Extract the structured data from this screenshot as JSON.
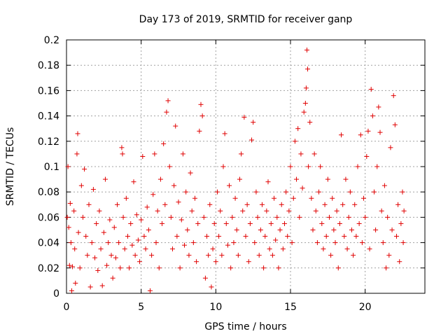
{
  "chart_data": {
    "type": "scatter",
    "title": "Day 173 of 2019, SRMTID for receiver ganp",
    "xlabel": "GPS time / hours",
    "ylabel": "SRMTID / TECUs",
    "xlim": [
      0,
      24
    ],
    "ylim": [
      0,
      0.2
    ],
    "grid": true,
    "marker": "+",
    "color": "#e00000",
    "x_ticks": [
      0,
      5,
      10,
      15,
      20
    ],
    "x_tick_labels": [
      "0",
      "5",
      "10",
      "15",
      "20"
    ],
    "y_ticks": [
      0,
      0.02,
      0.04,
      0.06,
      0.08,
      0.1,
      0.12,
      0.14,
      0.16,
      0.18,
      0.2
    ],
    "y_tick_labels": [
      "0",
      "0.02",
      "0.04",
      "0.06",
      "0.08",
      "0.1",
      "0.12",
      "0.14",
      "0.16",
      "0.18",
      "0.2"
    ],
    "series": [
      {
        "name": "SRMTID",
        "points": [
          [
            0.05,
            0.06
          ],
          [
            0.1,
            0.1
          ],
          [
            0.15,
            0.052
          ],
          [
            0.2,
            0.022
          ],
          [
            0.25,
            0.071
          ],
          [
            0.3,
            0.04
          ],
          [
            0.35,
            0.002
          ],
          [
            0.4,
            0.021
          ],
          [
            0.5,
            0.065
          ],
          [
            0.55,
            0.035
          ],
          [
            0.6,
            0.008
          ],
          [
            0.7,
            0.11
          ],
          [
            0.75,
            0.126
          ],
          [
            0.8,
            0.048
          ],
          [
            0.9,
            0.02
          ],
          [
            1.0,
            0.085
          ],
          [
            1.1,
            0.06
          ],
          [
            1.2,
            0.098
          ],
          [
            1.3,
            0.045
          ],
          [
            1.4,
            0.03
          ],
          [
            1.5,
            0.07
          ],
          [
            1.6,
            0.005
          ],
          [
            1.7,
            0.04
          ],
          [
            1.8,
            0.082
          ],
          [
            1.9,
            0.028
          ],
          [
            2.0,
            0.055
          ],
          [
            2.1,
            0.018
          ],
          [
            2.2,
            0.065
          ],
          [
            2.3,
            0.035
          ],
          [
            2.4,
            0.006
          ],
          [
            2.5,
            0.048
          ],
          [
            2.6,
            0.09
          ],
          [
            2.7,
            0.022
          ],
          [
            2.8,
            0.04
          ],
          [
            2.9,
            0.058
          ],
          [
            3.0,
            0.03
          ],
          [
            3.1,
            0.012
          ],
          [
            3.2,
            0.052
          ],
          [
            3.3,
            0.028
          ],
          [
            3.4,
            0.07
          ],
          [
            3.5,
            0.04
          ],
          [
            3.6,
            0.02
          ],
          [
            3.7,
            0.115
          ],
          [
            3.75,
            0.11
          ],
          [
            3.8,
            0.06
          ],
          [
            3.9,
            0.035
          ],
          [
            4.0,
            0.075
          ],
          [
            4.1,
            0.045
          ],
          [
            4.2,
            0.02
          ],
          [
            4.3,
            0.055
          ],
          [
            4.4,
            0.038
          ],
          [
            4.5,
            0.088
          ],
          [
            4.6,
            0.03
          ],
          [
            4.7,
            0.062
          ],
          [
            4.8,
            0.042
          ],
          [
            4.9,
            0.025
          ],
          [
            5.0,
            0.058
          ],
          [
            5.1,
            0.108
          ],
          [
            5.2,
            0.045
          ],
          [
            5.3,
            0.035
          ],
          [
            5.4,
            0.068
          ],
          [
            5.5,
            0.05
          ],
          [
            5.6,
            0.002
          ],
          [
            5.7,
            0.03
          ],
          [
            5.8,
            0.078
          ],
          [
            5.9,
            0.11
          ],
          [
            6.0,
            0.04
          ],
          [
            6.1,
            0.065
          ],
          [
            6.2,
            0.02
          ],
          [
            6.3,
            0.09
          ],
          [
            6.4,
            0.055
          ],
          [
            6.5,
            0.118
          ],
          [
            6.6,
            0.07
          ],
          [
            6.7,
            0.143
          ],
          [
            6.8,
            0.152
          ],
          [
            6.9,
            0.1
          ],
          [
            7.0,
            0.06
          ],
          [
            7.1,
            0.035
          ],
          [
            7.2,
            0.085
          ],
          [
            7.3,
            0.132
          ],
          [
            7.4,
            0.045
          ],
          [
            7.5,
            0.072
          ],
          [
            7.6,
            0.02
          ],
          [
            7.7,
            0.058
          ],
          [
            7.8,
            0.11
          ],
          [
            7.9,
            0.038
          ],
          [
            8.0,
            0.08
          ],
          [
            8.1,
            0.05
          ],
          [
            8.2,
            0.03
          ],
          [
            8.3,
            0.095
          ],
          [
            8.4,
            0.065
          ],
          [
            8.5,
            0.04
          ],
          [
            8.6,
            0.075
          ],
          [
            8.7,
            0.025
          ],
          [
            8.8,
            0.055
          ],
          [
            8.9,
            0.128
          ],
          [
            9.0,
            0.149
          ],
          [
            9.1,
            0.14
          ],
          [
            9.2,
            0.06
          ],
          [
            9.3,
            0.012
          ],
          [
            9.4,
            0.045
          ],
          [
            9.5,
            0.03
          ],
          [
            9.6,
            0.07
          ],
          [
            9.7,
            0.005
          ],
          [
            9.8,
            0.035
          ],
          [
            9.9,
            0.055
          ],
          [
            10.0,
            0.025
          ],
          [
            10.1,
            0.08
          ],
          [
            10.2,
            0.045
          ],
          [
            10.3,
            0.065
          ],
          [
            10.4,
            0.03
          ],
          [
            10.5,
            0.1
          ],
          [
            10.6,
            0.126
          ],
          [
            10.7,
            0.055
          ],
          [
            10.8,
            0.038
          ],
          [
            10.9,
            0.085
          ],
          [
            11.0,
            0.02
          ],
          [
            11.1,
            0.06
          ],
          [
            11.2,
            0.04
          ],
          [
            11.3,
            0.075
          ],
          [
            11.4,
            0.05
          ],
          [
            11.5,
            0.03
          ],
          [
            11.6,
            0.09
          ],
          [
            11.7,
            0.11
          ],
          [
            11.8,
            0.065
          ],
          [
            11.9,
            0.139
          ],
          [
            12.0,
            0.045
          ],
          [
            12.1,
            0.07
          ],
          [
            12.2,
            0.025
          ],
          [
            12.3,
            0.055
          ],
          [
            12.4,
            0.121
          ],
          [
            12.5,
            0.135
          ],
          [
            12.6,
            0.04
          ],
          [
            12.7,
            0.08
          ],
          [
            12.8,
            0.06
          ],
          [
            12.9,
            0.03
          ],
          [
            13.0,
            0.05
          ],
          [
            13.1,
            0.07
          ],
          [
            13.2,
            0.02
          ],
          [
            13.3,
            0.045
          ],
          [
            13.4,
            0.065
          ],
          [
            13.5,
            0.088
          ],
          [
            13.6,
            0.035
          ],
          [
            13.7,
            0.055
          ],
          [
            13.8,
            0.03
          ],
          [
            13.9,
            0.075
          ],
          [
            14.0,
            0.042
          ],
          [
            14.1,
            0.06
          ],
          [
            14.2,
            0.02
          ],
          [
            14.3,
            0.05
          ],
          [
            14.4,
            0.07
          ],
          [
            14.5,
            0.035
          ],
          [
            14.6,
            0.055
          ],
          [
            14.7,
            0.08
          ],
          [
            14.8,
            0.045
          ],
          [
            14.9,
            0.065
          ],
          [
            15.0,
            0.1
          ],
          [
            15.1,
            0.04
          ],
          [
            15.2,
            0.075
          ],
          [
            15.3,
            0.12
          ],
          [
            15.4,
            0.09
          ],
          [
            15.5,
            0.13
          ],
          [
            15.6,
            0.06
          ],
          [
            15.7,
            0.11
          ],
          [
            15.8,
            0.083
          ],
          [
            15.9,
            0.143
          ],
          [
            16.0,
            0.15
          ],
          [
            16.05,
            0.162
          ],
          [
            16.1,
            0.192
          ],
          [
            16.15,
            0.177
          ],
          [
            16.2,
            0.1
          ],
          [
            16.3,
            0.135
          ],
          [
            16.4,
            0.075
          ],
          [
            16.5,
            0.05
          ],
          [
            16.6,
            0.11
          ],
          [
            16.7,
            0.065
          ],
          [
            16.8,
            0.04
          ],
          [
            16.9,
            0.08
          ],
          [
            17.0,
            0.1
          ],
          [
            17.1,
            0.055
          ],
          [
            17.2,
            0.035
          ],
          [
            17.3,
            0.07
          ],
          [
            17.4,
            0.045
          ],
          [
            17.5,
            0.09
          ],
          [
            17.6,
            0.06
          ],
          [
            17.7,
            0.03
          ],
          [
            17.8,
            0.075
          ],
          [
            17.9,
            0.05
          ],
          [
            18.0,
            0.04
          ],
          [
            18.1,
            0.065
          ],
          [
            18.2,
            0.02
          ],
          [
            18.3,
            0.055
          ],
          [
            18.4,
            0.125
          ],
          [
            18.5,
            0.07
          ],
          [
            18.6,
            0.045
          ],
          [
            18.7,
            0.09
          ],
          [
            18.8,
            0.035
          ],
          [
            18.9,
            0.06
          ],
          [
            19.0,
            0.08
          ],
          [
            19.1,
            0.05
          ],
          [
            19.2,
            0.03
          ],
          [
            19.3,
            0.07
          ],
          [
            19.4,
            0.045
          ],
          [
            19.5,
            0.1
          ],
          [
            19.6,
            0.055
          ],
          [
            19.7,
            0.125
          ],
          [
            19.8,
            0.04
          ],
          [
            19.9,
            0.075
          ],
          [
            20.0,
            0.06
          ],
          [
            20.1,
            0.108
          ],
          [
            20.2,
            0.128
          ],
          [
            20.3,
            0.035
          ],
          [
            20.4,
            0.161
          ],
          [
            20.5,
            0.14
          ],
          [
            20.6,
            0.08
          ],
          [
            20.7,
            0.05
          ],
          [
            20.8,
            0.1
          ],
          [
            20.9,
            0.147
          ],
          [
            21.0,
            0.127
          ],
          [
            21.1,
            0.065
          ],
          [
            21.2,
            0.04
          ],
          [
            21.3,
            0.085
          ],
          [
            21.4,
            0.02
          ],
          [
            21.5,
            0.06
          ],
          [
            21.6,
            0.03
          ],
          [
            21.7,
            0.115
          ],
          [
            21.8,
            0.05
          ],
          [
            21.9,
            0.156
          ],
          [
            22.0,
            0.133
          ],
          [
            22.1,
            0.045
          ],
          [
            22.2,
            0.07
          ],
          [
            22.3,
            0.025
          ],
          [
            22.4,
            0.055
          ],
          [
            22.5,
            0.08
          ],
          [
            22.55,
            0.04
          ],
          [
            22.6,
            0.065
          ]
        ]
      }
    ]
  }
}
